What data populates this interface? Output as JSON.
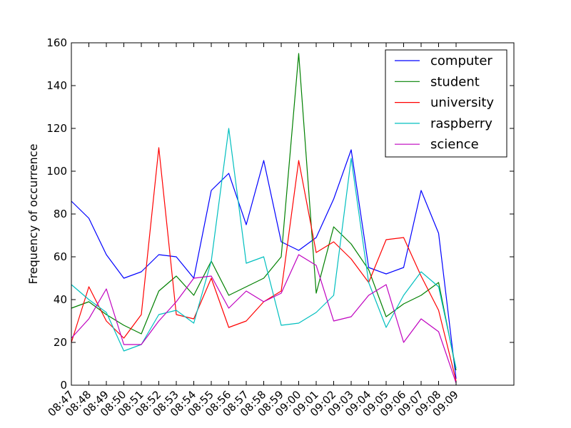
{
  "chart_data": {
    "type": "line",
    "title": "",
    "xlabel": "",
    "ylabel": "Frequency of occurrence",
    "ylim": [
      0,
      160
    ],
    "yticks": [
      0,
      20,
      40,
      60,
      80,
      100,
      120,
      140,
      160
    ],
    "grid": false,
    "legend_position": "top-right",
    "categories": [
      "08:47",
      "08:48",
      "08:49",
      "08:50",
      "08:51",
      "08:52",
      "08:53",
      "08:54",
      "08:55",
      "08:56",
      "08:57",
      "08:58",
      "08:59",
      "09:00",
      "09:01",
      "09:02",
      "09:03",
      "09:04",
      "09:05",
      "09:06",
      "09:07",
      "09:08",
      "09:09"
    ],
    "series": [
      {
        "name": "computer",
        "color": "#0000ff",
        "values": [
          86,
          78,
          61,
          50,
          53,
          61,
          60,
          50,
          91,
          99,
          75,
          105,
          67,
          63,
          69,
          87,
          110,
          55,
          52,
          55,
          91,
          71,
          3
        ]
      },
      {
        "name": "student",
        "color": "#008000",
        "values": [
          36,
          39,
          33,
          28,
          24,
          44,
          51,
          42,
          58,
          42,
          46,
          50,
          60,
          155,
          43,
          74,
          66,
          54,
          32,
          38,
          42,
          48,
          7
        ]
      },
      {
        "name": "university",
        "color": "#ff0000",
        "values": [
          20,
          46,
          30,
          22,
          33,
          111,
          33,
          31,
          50,
          27,
          30,
          39,
          44,
          105,
          62,
          67,
          59,
          48,
          68,
          69,
          51,
          35,
          2
        ]
      },
      {
        "name": "raspberry",
        "color": "#00bfbf",
        "values": [
          47,
          40,
          34,
          16,
          19,
          33,
          35,
          29,
          58,
          120,
          57,
          60,
          28,
          29,
          34,
          42,
          106,
          48,
          27,
          42,
          53,
          46,
          8
        ]
      },
      {
        "name": "science",
        "color": "#bf00bf",
        "values": [
          22,
          31,
          45,
          19,
          19,
          30,
          39,
          50,
          51,
          36,
          44,
          39,
          43,
          61,
          56,
          30,
          32,
          42,
          47,
          20,
          31,
          25,
          1
        ]
      }
    ]
  }
}
